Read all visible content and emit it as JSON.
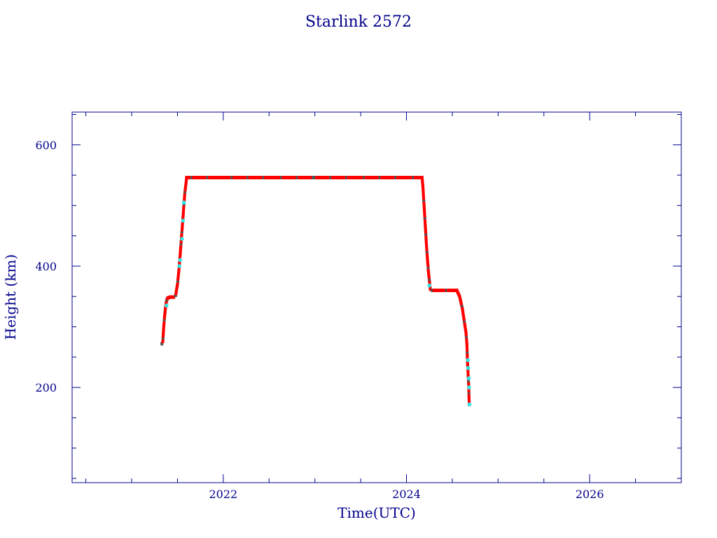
{
  "chart_data": {
    "type": "scatter",
    "title": "Starlink 2572",
    "xlabel": "Time(UTC)",
    "ylabel": "Height (km)",
    "xlim": [
      2020.35,
      2027.0
    ],
    "ylim": [
      43,
      654
    ],
    "x_ticks_major": [
      2022,
      2024,
      2026
    ],
    "x_ticks_minor_step": 0.5,
    "y_ticks_major": [
      200,
      400,
      600
    ],
    "y_ticks_minor_step": 50,
    "grid": false,
    "legend": "none",
    "colors": {
      "axes": "#00008b",
      "line": "#00008b",
      "marker_main": "#ff0000",
      "marker_alt": "#555555",
      "marker_highlight": "#33e6e6"
    },
    "series": [
      {
        "style": "line+markers",
        "points": [
          [
            2021.33,
            272
          ],
          [
            2021.34,
            276
          ],
          [
            2021.35,
            300
          ],
          [
            2021.36,
            318
          ],
          [
            2021.37,
            332
          ],
          [
            2021.38,
            342
          ],
          [
            2021.39,
            347
          ],
          [
            2021.42,
            349
          ],
          [
            2021.46,
            349
          ],
          [
            2021.48,
            352
          ],
          [
            2021.5,
            370
          ],
          [
            2021.52,
            400
          ],
          [
            2021.54,
            440
          ],
          [
            2021.56,
            480
          ],
          [
            2021.58,
            520
          ],
          [
            2021.6,
            546
          ],
          [
            2022.0,
            546
          ],
          [
            2022.5,
            546
          ],
          [
            2023.0,
            546
          ],
          [
            2023.5,
            546
          ],
          [
            2024.0,
            546
          ],
          [
            2024.17,
            546
          ],
          [
            2024.18,
            530
          ],
          [
            2024.2,
            480
          ],
          [
            2024.22,
            430
          ],
          [
            2024.24,
            390
          ],
          [
            2024.26,
            362
          ],
          [
            2024.28,
            360
          ],
          [
            2024.4,
            360
          ],
          [
            2024.55,
            360
          ],
          [
            2024.58,
            350
          ],
          [
            2024.61,
            330
          ],
          [
            2024.63,
            310
          ],
          [
            2024.65,
            290
          ],
          [
            2024.66,
            270
          ],
          [
            2024.665,
            245
          ],
          [
            2024.67,
            232
          ],
          [
            2024.675,
            215
          ],
          [
            2024.68,
            200
          ],
          [
            2024.685,
            172
          ]
        ],
        "highlight_points": [
          [
            2021.38,
            335
          ],
          [
            2021.52,
            400
          ],
          [
            2021.53,
            410
          ],
          [
            2021.55,
            445
          ],
          [
            2021.56,
            475
          ],
          [
            2021.57,
            505
          ],
          [
            2024.25,
            368
          ],
          [
            2024.67,
            245
          ],
          [
            2024.675,
            232
          ],
          [
            2024.68,
            215
          ],
          [
            2024.683,
            200
          ],
          [
            2024.687,
            172
          ]
        ]
      }
    ]
  }
}
